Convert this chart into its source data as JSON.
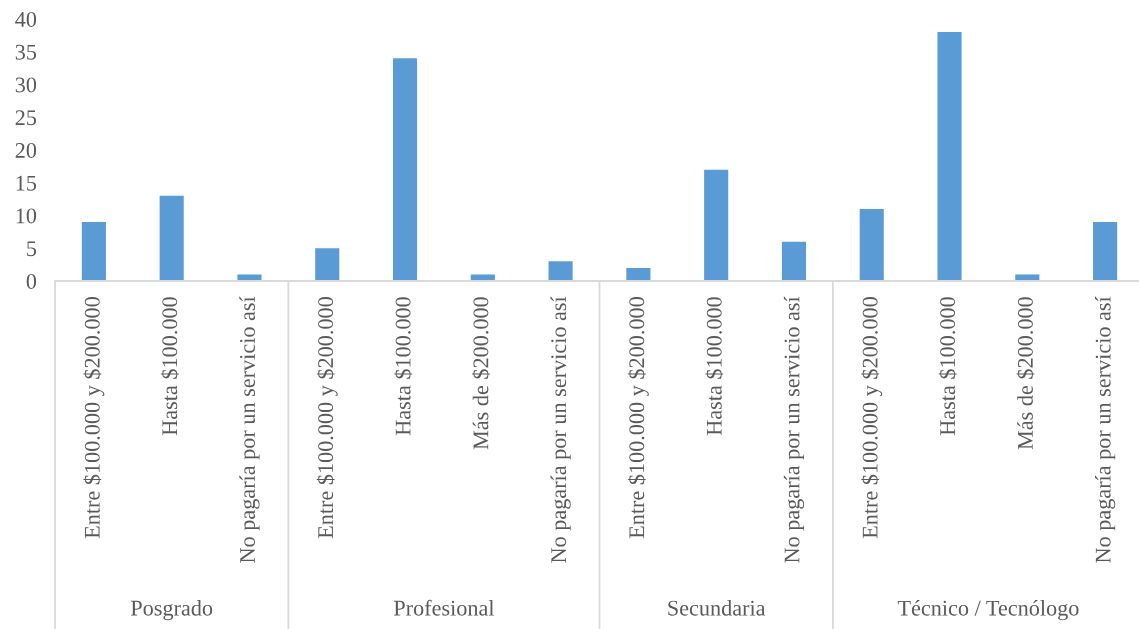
{
  "chart_data": [
    {
      "type": "bar",
      "categories": [
        "Entre $100.000 y $200.000",
        "Hasta $100.000",
        "No pagaría por un servicio así"
      ],
      "values": [
        9,
        13,
        1
      ],
      "color": "#5b9bd5",
      "xlabel": "Posgrado",
      "ylim": [
        0,
        40
      ],
      "yticks": [
        0,
        5,
        10,
        15,
        20,
        25,
        30,
        35,
        40
      ]
    },
    {
      "type": "bar",
      "categories": [
        "Entre $100.000 y $200.000",
        "Hasta $100.000",
        "Más de $200.000",
        "No pagaría por un servicio así"
      ],
      "values": [
        5,
        34,
        1,
        3
      ],
      "color": "#5b9bd5",
      "xlabel": "Profesional",
      "ylim": [
        0,
        40
      ],
      "yticks": [
        0,
        5,
        10,
        15,
        20,
        25,
        30,
        35,
        40
      ],
      "tick_labels": "x"
    },
    {
      "type": "bar",
      "categories": [
        "Entre $100.000 y $200.000",
        "Hasta $100.000",
        "No pagaría por un servicio así"
      ],
      "values": [
        2,
        17,
        6
      ],
      "color": "#5b9bd5",
      "xlabel": "Secundaria",
      "ylim": [
        0,
        40
      ],
      "yticks": [
        0,
        5,
        10,
        15,
        20,
        25,
        30,
        35,
        40
      ],
      "tick_labels": "x"
    },
    {
      "type": "bar",
      "categories": [
        "Entre $100.000 y $200.000",
        "Hasta $100.000",
        "Más de $200.000",
        "No pagaría por un servicio así"
      ],
      "values": [
        11,
        38,
        1,
        9
      ],
      "color": "#5b9bd5",
      "xlabel": "Técnico / Tecnólogo",
      "ylim": [
        0,
        40
      ],
      "yticks": [
        0,
        5,
        10,
        15,
        20,
        25,
        30,
        35,
        40
      ],
      "tick_labels": "x"
    }
  ]
}
